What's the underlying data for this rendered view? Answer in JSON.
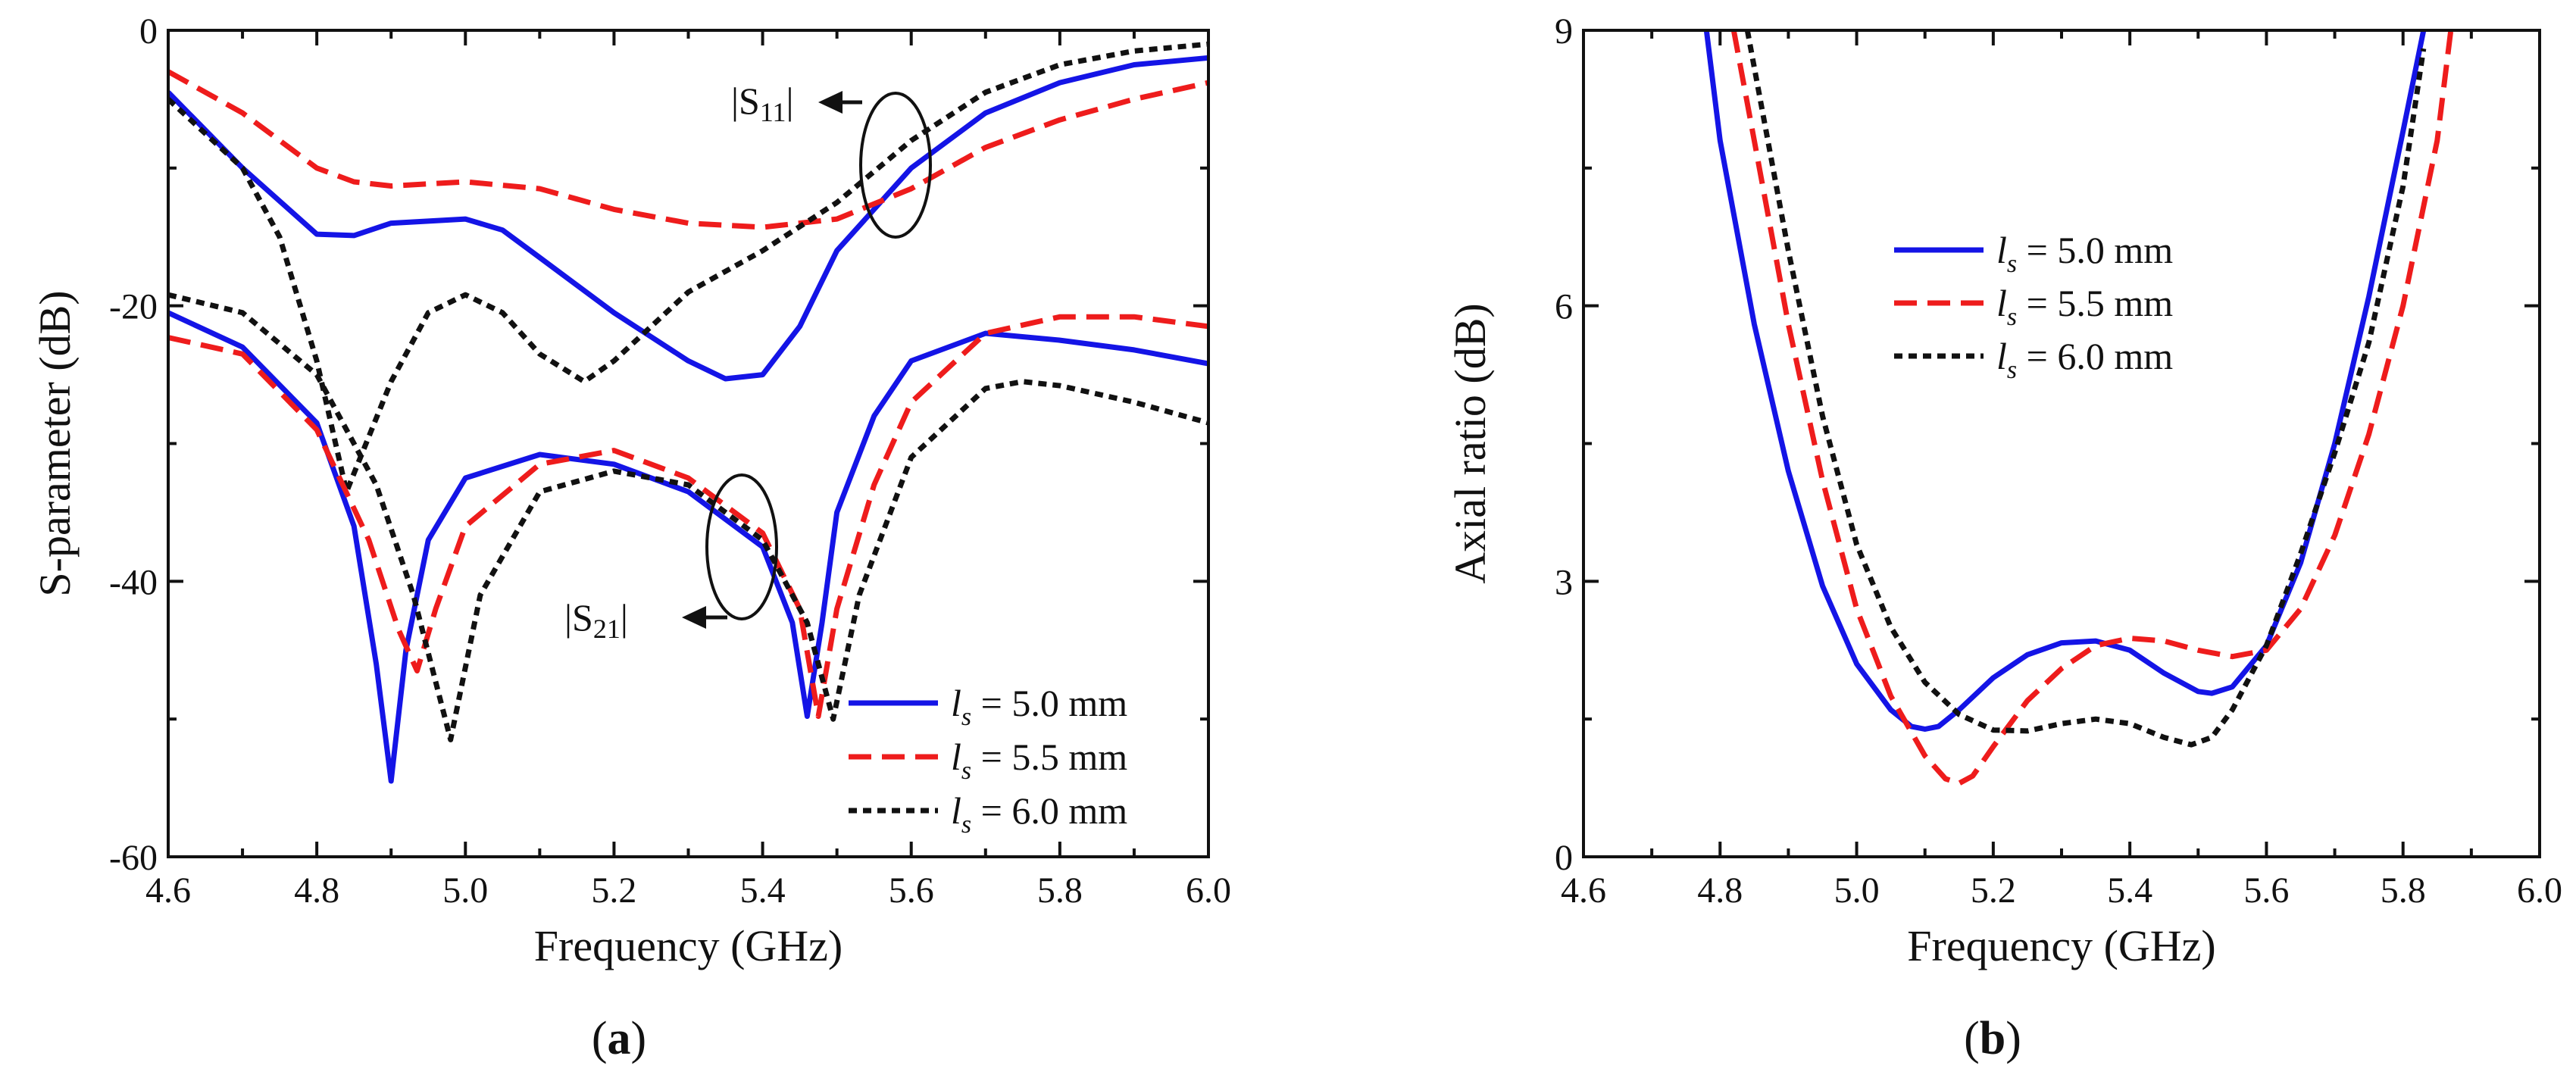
{
  "chart_data": [
    {
      "id": "a",
      "type": "line",
      "caption": "a",
      "xlabel": "Frequency (GHz)",
      "ylabel": "S-parameter (dB)",
      "xlim": [
        4.6,
        6.0
      ],
      "ylim": [
        -60,
        0
      ],
      "xticks": [
        "4.6",
        "4.8",
        "5.0",
        "5.2",
        "5.4",
        "5.6",
        "5.8",
        "6.0"
      ],
      "yticks": [
        "0",
        "-20",
        "-40",
        "-60"
      ],
      "legend": "bottom-right",
      "legend_items": [
        {
          "var": "l",
          "sub": "s",
          "text": " = 5.0 mm",
          "color": "#1414e6",
          "dash": "solid"
        },
        {
          "var": "l",
          "sub": "s",
          "text": " = 5.5 mm",
          "color": "#ee1c1c",
          "dash": "dashed"
        },
        {
          "var": "l",
          "sub": "s",
          "text": " = 6.0 mm",
          "color": "#111111",
          "dash": "dotted"
        }
      ],
      "annotations": [
        {
          "label": "|S",
          "sub": "11",
          "suffix": "|",
          "arrow": "left"
        },
        {
          "label": "|S",
          "sub": "21",
          "suffix": "|",
          "arrow": "left"
        }
      ],
      "series": [
        {
          "name": "|S11| ls = 5.0 mm",
          "color": "#1414e6",
          "dash": "solid",
          "x": [
            4.6,
            4.7,
            4.8,
            4.85,
            4.9,
            5.0,
            5.05,
            5.1,
            5.2,
            5.3,
            5.35,
            5.4,
            5.45,
            5.5,
            5.6,
            5.7,
            5.8,
            5.9,
            6.0
          ],
          "y": [
            -4.5,
            -10,
            -14.8,
            -14.9,
            -14.0,
            -13.7,
            -14.5,
            -16.5,
            -20.5,
            -24.0,
            -25.3,
            -25.0,
            -21.5,
            -16,
            -10,
            -6,
            -3.8,
            -2.5,
            -2.0
          ]
        },
        {
          "name": "|S11| ls = 5.5 mm",
          "color": "#ee1c1c",
          "dash": "dashed",
          "x": [
            4.6,
            4.7,
            4.8,
            4.85,
            4.9,
            5.0,
            5.1,
            5.2,
            5.3,
            5.4,
            5.5,
            5.6,
            5.7,
            5.8,
            5.9,
            6.0
          ],
          "y": [
            -3.0,
            -6.0,
            -10.0,
            -11.0,
            -11.3,
            -11.0,
            -11.5,
            -13.0,
            -14.0,
            -14.3,
            -13.7,
            -11.5,
            -8.5,
            -6.5,
            -5.0,
            -3.8
          ]
        },
        {
          "name": "|S11| ls = 6.0 mm",
          "color": "#111111",
          "dash": "dotted",
          "x": [
            4.6,
            4.7,
            4.75,
            4.8,
            4.84,
            4.9,
            4.95,
            5.0,
            5.05,
            5.1,
            5.16,
            5.2,
            5.3,
            5.4,
            5.5,
            5.6,
            5.7,
            5.8,
            5.9,
            6.0
          ],
          "y": [
            -5.0,
            -10.0,
            -15.0,
            -24.0,
            -33.5,
            -25.5,
            -20.5,
            -19.2,
            -20.5,
            -23.5,
            -25.5,
            -24.0,
            -19.0,
            -16.0,
            -12.5,
            -8.0,
            -4.5,
            -2.5,
            -1.5,
            -1.0
          ]
        },
        {
          "name": "|S21| ls = 5.0 mm",
          "color": "#1414e6",
          "dash": "solid",
          "x": [
            4.6,
            4.7,
            4.8,
            4.85,
            4.88,
            4.9,
            4.92,
            4.95,
            5.0,
            5.1,
            5.2,
            5.3,
            5.4,
            5.44,
            5.46,
            5.48,
            5.5,
            5.55,
            5.6,
            5.7,
            5.8,
            5.9,
            6.0
          ],
          "y": [
            -20.5,
            -23.0,
            -28.5,
            -36.0,
            -46.0,
            -54.5,
            -45.0,
            -37.0,
            -32.5,
            -30.8,
            -31.5,
            -33.5,
            -37.5,
            -43.0,
            -49.8,
            -43.0,
            -35.0,
            -28.0,
            -24.0,
            -22.0,
            -22.5,
            -23.2,
            -24.2
          ]
        },
        {
          "name": "|S21| ls = 5.5 mm",
          "color": "#ee1c1c",
          "dash": "dashed",
          "x": [
            4.6,
            4.7,
            4.8,
            4.87,
            4.91,
            4.935,
            4.96,
            5.0,
            5.1,
            5.2,
            5.3,
            5.4,
            5.45,
            5.475,
            5.5,
            5.55,
            5.6,
            5.7,
            5.8,
            5.9,
            6.0
          ],
          "y": [
            -22.3,
            -23.5,
            -29.0,
            -37.0,
            -43.5,
            -46.5,
            -42.0,
            -36.0,
            -31.5,
            -30.5,
            -32.5,
            -36.5,
            -42.0,
            -49.8,
            -42.0,
            -33.0,
            -27.0,
            -22.0,
            -20.8,
            -20.8,
            -21.5
          ]
        },
        {
          "name": "|S21| ls = 6.0 mm",
          "color": "#111111",
          "dash": "dotted",
          "x": [
            4.6,
            4.7,
            4.8,
            4.88,
            4.93,
            4.98,
            5.02,
            5.1,
            5.2,
            5.3,
            5.4,
            5.46,
            5.495,
            5.53,
            5.6,
            5.7,
            5.75,
            5.8,
            5.9,
            6.0
          ],
          "y": [
            -19.2,
            -20.5,
            -25.0,
            -33.0,
            -41.0,
            -51.5,
            -41.0,
            -33.5,
            -32.0,
            -33.0,
            -37.0,
            -43.0,
            -50.0,
            -41.0,
            -31.0,
            -26.0,
            -25.5,
            -25.8,
            -27.0,
            -28.5
          ]
        }
      ]
    },
    {
      "id": "b",
      "type": "line",
      "caption": "b",
      "xlabel": "Frequency (GHz)",
      "ylabel": "Axial ratio (dB)",
      "xlim": [
        4.6,
        6.0
      ],
      "ylim": [
        0,
        9
      ],
      "xticks": [
        "4.6",
        "4.8",
        "5.0",
        "5.2",
        "5.4",
        "5.6",
        "5.8",
        "6.0"
      ],
      "yticks": [
        "0",
        "3",
        "6",
        "9"
      ],
      "legend": "top-center",
      "legend_items": [
        {
          "var": "l",
          "sub": "s",
          "text": " = 5.0 mm",
          "color": "#1414e6",
          "dash": "solid"
        },
        {
          "var": "l",
          "sub": "s",
          "text": " = 5.5 mm",
          "color": "#ee1c1c",
          "dash": "dashed"
        },
        {
          "var": "l",
          "sub": "s",
          "text": " = 6.0 mm",
          "color": "#111111",
          "dash": "dotted"
        }
      ],
      "series": [
        {
          "name": "ls = 5.0 mm",
          "color": "#1414e6",
          "dash": "solid",
          "x": [
            4.78,
            4.8,
            4.85,
            4.9,
            4.95,
            5.0,
            5.05,
            5.08,
            5.1,
            5.12,
            5.15,
            5.2,
            5.25,
            5.3,
            5.35,
            5.4,
            5.45,
            5.5,
            5.52,
            5.55,
            5.6,
            5.65,
            5.7,
            5.75,
            5.8,
            5.83
          ],
          "y": [
            9.0,
            7.8,
            5.8,
            4.2,
            2.95,
            2.1,
            1.6,
            1.42,
            1.39,
            1.42,
            1.6,
            1.95,
            2.2,
            2.33,
            2.35,
            2.25,
            2.0,
            1.8,
            1.78,
            1.85,
            2.3,
            3.2,
            4.5,
            6.1,
            7.9,
            9.0
          ]
        },
        {
          "name": "ls = 5.5 mm",
          "color": "#ee1c1c",
          "dash": "dashed",
          "x": [
            4.82,
            4.85,
            4.9,
            4.95,
            5.0,
            5.05,
            5.1,
            5.13,
            5.15,
            5.17,
            5.2,
            5.25,
            5.3,
            5.35,
            5.4,
            5.45,
            5.5,
            5.55,
            5.6,
            5.65,
            5.7,
            5.75,
            5.8,
            5.85,
            5.87
          ],
          "y": [
            9.0,
            7.8,
            5.8,
            4.1,
            2.7,
            1.75,
            1.1,
            0.85,
            0.8,
            0.88,
            1.2,
            1.7,
            2.05,
            2.3,
            2.38,
            2.35,
            2.25,
            2.18,
            2.25,
            2.7,
            3.5,
            4.6,
            6.0,
            7.8,
            9.0
          ]
        },
        {
          "name": "ls = 6.0 mm",
          "color": "#111111",
          "dash": "dotted",
          "x": [
            4.84,
            4.9,
            4.95,
            5.0,
            5.05,
            5.1,
            5.15,
            5.2,
            5.25,
            5.3,
            5.35,
            5.4,
            5.45,
            5.49,
            5.52,
            5.55,
            5.6,
            5.65,
            5.7,
            5.75,
            5.8,
            5.83
          ],
          "y": [
            9.0,
            6.6,
            4.8,
            3.4,
            2.5,
            1.9,
            1.55,
            1.38,
            1.37,
            1.45,
            1.5,
            1.45,
            1.3,
            1.22,
            1.3,
            1.6,
            2.3,
            3.3,
            4.4,
            5.6,
            7.3,
            8.8
          ]
        }
      ]
    }
  ]
}
